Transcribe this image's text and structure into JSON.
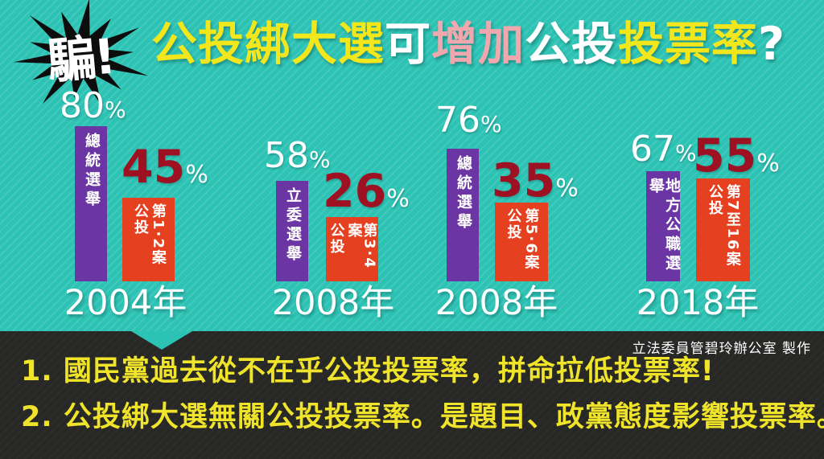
{
  "title": {
    "badge": "騙!",
    "segments": [
      {
        "text": "公投綁大選",
        "color": "#f2e71d"
      },
      {
        "text": "可",
        "color": "#ffffff"
      },
      {
        "text": "增加",
        "color": "#f0a7ad"
      },
      {
        "text": "公投",
        "color": "#ffffff"
      },
      {
        "text": "投票率",
        "color": "#f2e71d"
      },
      {
        "text": "?",
        "color": "#ffffff"
      }
    ]
  },
  "chart_data": {
    "type": "bar",
    "unit": "%",
    "ylim": [
      0,
      100
    ],
    "grid": false,
    "groups": [
      {
        "year": "2004年",
        "election": {
          "label": "總統選舉",
          "value": 80
        },
        "referendum": {
          "label": "公投",
          "cases": "第1·2案",
          "value": 45
        }
      },
      {
        "year": "2008年",
        "election": {
          "label": "立委選舉",
          "value": 58
        },
        "referendum": {
          "label": "公投",
          "cases": "第3·4案",
          "value": 26
        }
      },
      {
        "year": "2008年",
        "election": {
          "label": "總統選舉",
          "value": 76
        },
        "referendum": {
          "label": "公投",
          "cases": "第5·6案",
          "value": 35
        }
      },
      {
        "year": "2018年",
        "election": {
          "label": "地方公職選舉",
          "value": 67
        },
        "referendum": {
          "label": "公投",
          "cases": "第7至16案",
          "value": 55
        }
      }
    ],
    "colors": {
      "background": "#2dc3b4",
      "election_bar": "#6b36a3",
      "referendum_bar": "#e54120",
      "referendum_value_text": "#9d1123",
      "footer_background": "#272725",
      "footer_text": "#f0e42a"
    }
  },
  "footer": {
    "notes": [
      "1. 國民黨過去從不在乎公投投票率，拼命拉低投票率!",
      "2. 公投綁大選無關公投投票率。是題目、政黨態度影響投票率。"
    ],
    "credit": "立法委員管碧玲辦公室 製作"
  }
}
